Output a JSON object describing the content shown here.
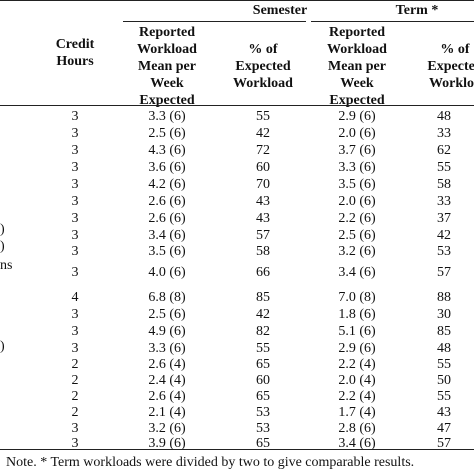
{
  "header": {
    "group_semester": "Semester",
    "group_term": "Term *",
    "col_credit": [
      "Credit",
      "Hours"
    ],
    "col_sem_workload": [
      "Reported",
      "Workload",
      "Mean per",
      "Week",
      "Expected"
    ],
    "col_sem_pct": [
      "% of",
      "Expected",
      "Workload"
    ],
    "col_term_workload": [
      "Reported",
      "Workload",
      "Mean per",
      "Week",
      "Expected"
    ],
    "col_term_pct": [
      "% of",
      "Expected",
      "Workloa"
    ]
  },
  "left_fragments": {
    "row9": ")",
    "row10": ")",
    "row10b": "ns",
    "row15": ")"
  },
  "rows": [
    {
      "credit": "3",
      "sem_workload": "3.3 (6)",
      "sem_pct": "55",
      "term_workload": "2.9 (6)",
      "term_pct": "48"
    },
    {
      "credit": "3",
      "sem_workload": "2.5 (6)",
      "sem_pct": "42",
      "term_workload": "2.0 (6)",
      "term_pct": "33"
    },
    {
      "credit": "3",
      "sem_workload": "4.3 (6)",
      "sem_pct": "72",
      "term_workload": "3.7 (6)",
      "term_pct": "62"
    },
    {
      "credit": "3",
      "sem_workload": "3.6 (6)",
      "sem_pct": "60",
      "term_workload": "3.3 (6)",
      "term_pct": "55"
    },
    {
      "credit": "3",
      "sem_workload": "4.2 (6)",
      "sem_pct": "70",
      "term_workload": "3.5 (6)",
      "term_pct": "58"
    },
    {
      "credit": "3",
      "sem_workload": "2.6 (6)",
      "sem_pct": "43",
      "term_workload": "2.0 (6)",
      "term_pct": "33"
    },
    {
      "credit": "3",
      "sem_workload": "2.6 (6)",
      "sem_pct": "43",
      "term_workload": "2.2 (6)",
      "term_pct": "37"
    },
    {
      "credit": "3",
      "sem_workload": "3.4 (6)",
      "sem_pct": "57",
      "term_workload": "2.5 (6)",
      "term_pct": "42"
    },
    {
      "credit": "3",
      "sem_workload": "3.5 (6)",
      "sem_pct": "58",
      "term_workload": "3.2 (6)",
      "term_pct": "53"
    },
    {
      "credit": "3",
      "sem_workload": "4.0 (6)",
      "sem_pct": "66",
      "term_workload": "3.4 (6)",
      "term_pct": "57"
    },
    {
      "credit": "4",
      "sem_workload": "6.8 (8)",
      "sem_pct": "85",
      "term_workload": "7.0 (8)",
      "term_pct": "88"
    },
    {
      "credit": "3",
      "sem_workload": "2.5 (6)",
      "sem_pct": "42",
      "term_workload": "1.8 (6)",
      "term_pct": "30"
    },
    {
      "credit": "3",
      "sem_workload": "4.9 (6)",
      "sem_pct": "82",
      "term_workload": "5.1 (6)",
      "term_pct": "85"
    },
    {
      "credit": "3",
      "sem_workload": "3.3 (6)",
      "sem_pct": "55",
      "term_workload": "2.9 (6)",
      "term_pct": "48"
    },
    {
      "credit": "2",
      "sem_workload": "2.6 (4)",
      "sem_pct": "65",
      "term_workload": "2.2 (4)",
      "term_pct": "55"
    },
    {
      "credit": "2",
      "sem_workload": "2.4 (4)",
      "sem_pct": "60",
      "term_workload": "2.0 (4)",
      "term_pct": "50"
    },
    {
      "credit": "2",
      "sem_workload": "2.6 (4)",
      "sem_pct": "65",
      "term_workload": "2.2 (4)",
      "term_pct": "55"
    },
    {
      "credit": "2",
      "sem_workload": "2.1 (4)",
      "sem_pct": "53",
      "term_workload": "1.7 (4)",
      "term_pct": "43"
    },
    {
      "credit": "3",
      "sem_workload": "3.2 (6)",
      "sem_pct": "53",
      "term_workload": "2.8 (6)",
      "term_pct": "47"
    },
    {
      "credit": "3",
      "sem_workload": "3.9 (6)",
      "sem_pct": "65",
      "term_workload": "3.4 (6)",
      "term_pct": "57"
    }
  ],
  "note": "Note. * Term workloads were divided by two to give comparable results."
}
